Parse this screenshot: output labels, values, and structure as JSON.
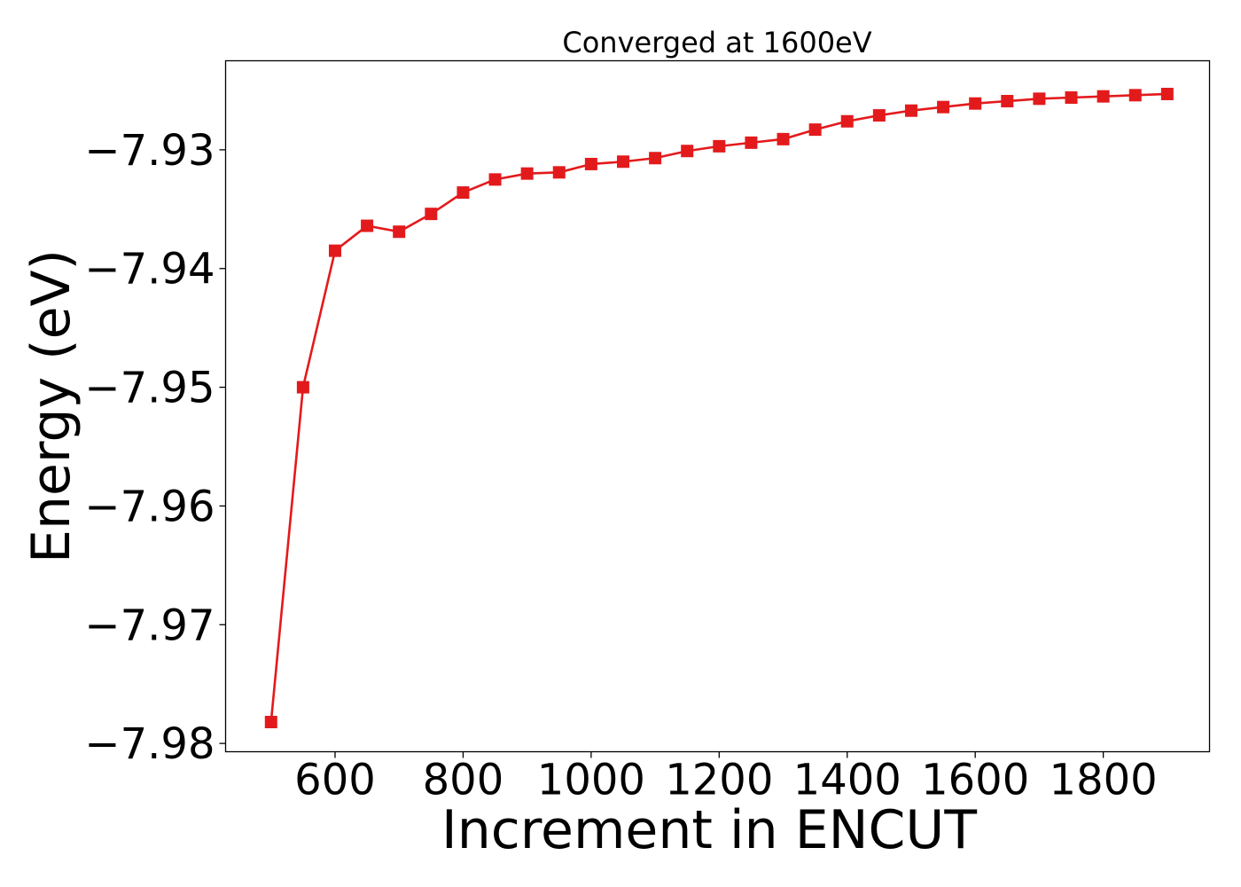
{
  "chart_data": {
    "type": "line",
    "title": "Converged at 1600eV",
    "xlabel": "Increment in ENCUT",
    "ylabel": "Energy (eV)",
    "xlim": [
      429,
      1966
    ],
    "ylim": [
      -7.9807,
      -7.9225
    ],
    "xticks": [
      600,
      800,
      1000,
      1200,
      1400,
      1600,
      1800
    ],
    "xtick_labels": [
      "600",
      "800",
      "1000",
      "1200",
      "1400",
      "1600",
      "1800"
    ],
    "yticks": [
      -7.98,
      -7.97,
      -7.96,
      -7.95,
      -7.94,
      -7.93
    ],
    "ytick_labels": [
      "−7.98",
      "−7.97",
      "−7.96",
      "−7.95",
      "−7.94",
      "−7.93"
    ],
    "grid": false,
    "legend": "none",
    "series": [
      {
        "color": "#e31a1c",
        "marker": "square",
        "x": [
          500,
          550,
          600,
          650,
          700,
          750,
          800,
          850,
          900,
          950,
          1000,
          1050,
          1100,
          1150,
          1200,
          1250,
          1300,
          1350,
          1400,
          1450,
          1500,
          1550,
          1600,
          1650,
          1700,
          1750,
          1800,
          1850,
          1900
        ],
        "y": [
          -7.9782,
          -7.95,
          -7.9385,
          -7.9364,
          -7.9369,
          -7.9354,
          -7.9336,
          -7.9325,
          -7.932,
          -7.9319,
          -7.9312,
          -7.931,
          -7.9307,
          -7.9301,
          -7.9297,
          -7.9294,
          -7.9291,
          -7.9283,
          -7.9276,
          -7.9271,
          -7.9267,
          -7.9264,
          -7.9261,
          -7.9259,
          -7.9257,
          -7.9256,
          -7.9255,
          -7.9254,
          -7.9253
        ]
      }
    ]
  }
}
